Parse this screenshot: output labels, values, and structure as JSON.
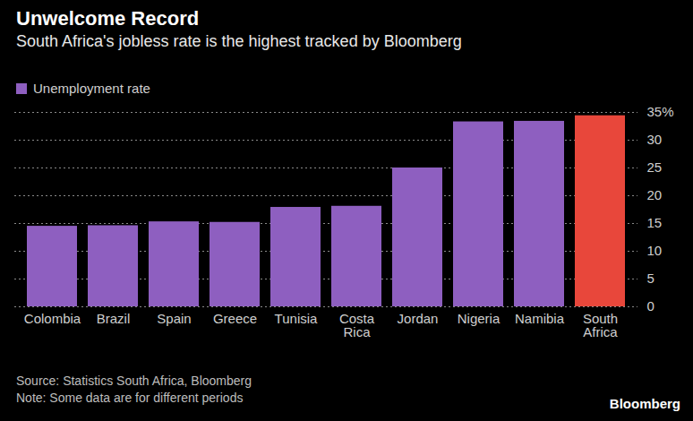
{
  "chart_data": {
    "type": "bar",
    "title": "Unwelcome Record",
    "subtitle": "South Africa's jobless rate is the highest tracked by Bloomberg",
    "categories": [
      "Colombia",
      "Brazil",
      "Spain",
      "Greece",
      "Tunisia",
      "Costa Rica",
      "Jordan",
      "Nigeria",
      "Namibia",
      "South Africa"
    ],
    "series": [
      {
        "name": "Unemployment rate",
        "color": "#8e5fc0",
        "values": [
          14.5,
          14.6,
          15.3,
          15.2,
          17.9,
          18.1,
          25.0,
          33.3,
          33.4,
          34.4
        ]
      }
    ],
    "colors": [
      "#8e5fc0",
      "#8e5fc0",
      "#8e5fc0",
      "#8e5fc0",
      "#8e5fc0",
      "#8e5fc0",
      "#8e5fc0",
      "#8e5fc0",
      "#8e5fc0",
      "#e8473b"
    ],
    "ylim": [
      0,
      35
    ],
    "yticks": [
      0,
      5,
      10,
      15,
      20,
      25,
      30,
      {
        "value": 35,
        "label": "35%"
      }
    ],
    "grid": true,
    "legend": "top-left",
    "source": "Source: Statistics South Africa, Bloomberg",
    "note": "Note: Some data are for different periods",
    "credit": "Bloomberg"
  }
}
